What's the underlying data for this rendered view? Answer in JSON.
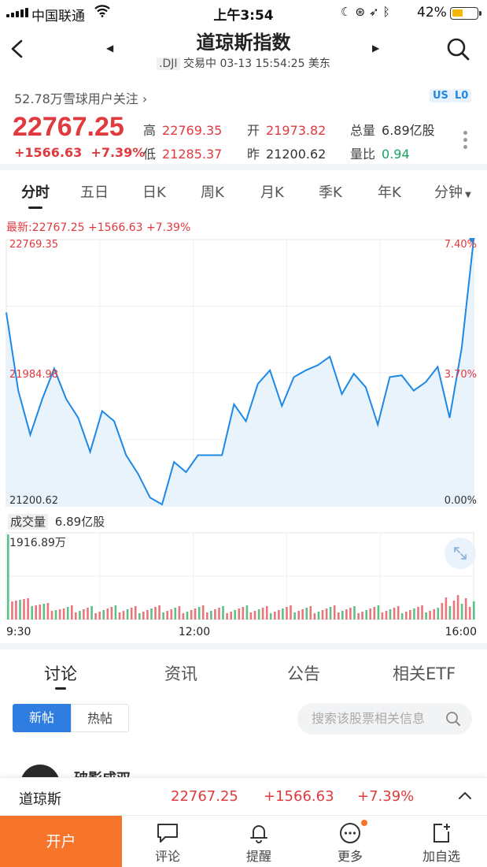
{
  "status_bar": {
    "carrier": "中国联通",
    "time": "上午3:54",
    "battery_pct": "42%"
  },
  "nav": {
    "title": "道琼斯指数",
    "code": ".DJI",
    "subtitle": "交易中 03-13 15:54:25 美东"
  },
  "followers": "52.78万雪球用户关注",
  "tags": [
    "US",
    "L0"
  ],
  "quote": {
    "price": "22767.25",
    "change": "+1566.63",
    "change_pct": "+7.39%",
    "stats": [
      {
        "label": "高",
        "value": "22769.35",
        "color": "red"
      },
      {
        "label": "开",
        "value": "21973.82",
        "color": "red"
      },
      {
        "label": "总量",
        "value": "6.89亿股",
        "color": "dark"
      },
      {
        "label": "低",
        "value": "21285.37",
        "color": "red"
      },
      {
        "label": "昨",
        "value": "21200.62",
        "color": "dark"
      },
      {
        "label": "量比",
        "value": "0.94",
        "color": "green"
      }
    ]
  },
  "k_tabs": [
    "分时",
    "五日",
    "日K",
    "周K",
    "月K",
    "季K",
    "年K",
    "分钟"
  ],
  "k_tab_active": "分时",
  "latest_line": "最新:22767.25  +1566.63  +7.39%",
  "chart_data": {
    "type": "line",
    "title": "",
    "y_labels_left": [
      "22769.35",
      "21984.98",
      "21200.62"
    ],
    "y_labels_right": [
      "7.40%",
      "3.70%",
      "0.00%"
    ],
    "ylim": [
      21200.62,
      22769.35
    ],
    "x_labels": [
      "9:30",
      "12:00",
      "16:00"
    ],
    "grid": true,
    "series": [
      {
        "x": [
          "9:30",
          "9:40",
          "9:50",
          "10:00",
          "10:10",
          "10:20",
          "10:30",
          "10:40",
          "10:50",
          "11:00",
          "11:10",
          "11:20",
          "11:30",
          "11:40",
          "11:50",
          "12:00",
          "12:10",
          "12:20",
          "12:30",
          "12:40",
          "12:50",
          "13:00",
          "13:10",
          "13:20",
          "13:30",
          "13:40",
          "13:50",
          "14:00",
          "14:10",
          "14:20",
          "14:30",
          "14:40",
          "14:50",
          "15:00",
          "15:10",
          "15:20",
          "15:30",
          "15:40",
          "15:50",
          "16:00"
        ],
        "values": [
          22340,
          21880,
          21620,
          21830,
          22010,
          21830,
          21720,
          21520,
          21760,
          21700,
          21500,
          21390,
          21250,
          21210,
          21460,
          21400,
          21500,
          21500,
          21500,
          21800,
          21700,
          21920,
          22000,
          21790,
          21960,
          22000,
          22030,
          22080,
          21860,
          21980,
          21900,
          21680,
          21960,
          21970,
          21880,
          21930,
          22020,
          21720,
          22130,
          22769
        ]
      }
    ],
    "volume": {
      "label": "成交量",
      "total": "6.89亿股",
      "max_label": "1916.89万"
    }
  },
  "discussion_tabs": [
    "讨论",
    "资讯",
    "公告",
    "相关ETF"
  ],
  "segments": [
    "新帖",
    "热帖"
  ],
  "search_placeholder": "搜索该股票相关信息",
  "post": {
    "author": "破影成双"
  },
  "quote_bar": {
    "name": "道琼斯",
    "price": "22767.25",
    "change": "+1566.63",
    "pct": "+7.39%"
  },
  "toolbar": {
    "open_account": "开户",
    "items": [
      "评论",
      "提醒",
      "更多",
      "加自选"
    ]
  },
  "colors": {
    "up": "#e0393e",
    "down": "#1aa260",
    "line": "#1e88e5",
    "accent": "#2f7de1",
    "orange": "#f7742b"
  }
}
